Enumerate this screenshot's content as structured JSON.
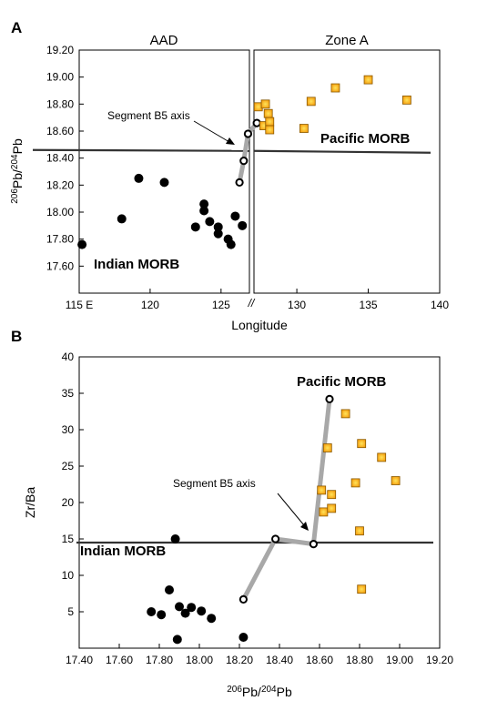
{
  "panel_a": {
    "label": "A",
    "zone_left": "AAD",
    "zone_right": "Zone A",
    "xlabel": "Longitude",
    "ylabel_base": "Pb",
    "ylabel_sup1": "206",
    "ylabel_sup2": "204",
    "ylabel_slash": "/",
    "x_first_tick": "115 E",
    "break_mark": "//",
    "label_pacific": "Pacific MORB",
    "label_indian": "Indian MORB",
    "label_segment": "Segment B5 axis"
  },
  "panel_b": {
    "label": "B",
    "xlabel_base": "Pb",
    "xlabel_sup1": "206",
    "xlabel_sup2": "204",
    "xlabel_slash": "/",
    "ylabel": "Zr/Ba",
    "label_pacific": "Pacific MORB",
    "label_indian": "Indian MORB",
    "label_segment": "Segment B5 axis"
  },
  "chart_data": [
    {
      "type": "scatter",
      "panel": "A",
      "xlabel": "Longitude",
      "ylabel": "206Pb/204Pb",
      "xlim": [
        115,
        140
      ],
      "ylim": [
        17.4,
        19.2
      ],
      "x_ticks": [
        115,
        120,
        125,
        130,
        135,
        140
      ],
      "x_tick_labels": [
        "115 E",
        "120",
        "125",
        "130",
        "135",
        "140"
      ],
      "y_ticks": [
        17.6,
        17.8,
        18.0,
        18.2,
        18.4,
        18.6,
        18.8,
        19.0,
        19.2
      ],
      "y_tick_labels": [
        "17.60",
        "17.80",
        "18.00",
        "18.20",
        "18.40",
        "18.60",
        "18.80",
        "19.00",
        "19.20"
      ],
      "axis_break_at": 127,
      "reference_line": 18.46,
      "series": [
        {
          "name": "Indian MORB",
          "marker": "filled-circle",
          "points": [
            [
              115.2,
              17.76
            ],
            [
              118,
              17.95
            ],
            [
              119.2,
              18.25
            ],
            [
              121,
              18.22
            ],
            [
              123.2,
              17.89
            ],
            [
              123.8,
              18.06
            ],
            [
              123.8,
              18.01
            ],
            [
              124.2,
              17.93
            ],
            [
              124.8,
              17.89
            ],
            [
              124.8,
              17.84
            ],
            [
              125.5,
              17.8
            ],
            [
              125.7,
              17.76
            ],
            [
              126,
              17.97
            ],
            [
              126.5,
              17.9
            ]
          ]
        },
        {
          "name": "Segment B5 axis",
          "marker": "open-circle",
          "connected": true,
          "points": [
            [
              126.3,
              18.22
            ],
            [
              126.6,
              18.38
            ],
            [
              126.9,
              18.58
            ],
            [
              127.2,
              18.66
            ]
          ]
        },
        {
          "name": "Pacific MORB",
          "marker": "orange-square",
          "points": [
            [
              127.3,
              18.78
            ],
            [
              127.7,
              18.64
            ],
            [
              127.8,
              18.8
            ],
            [
              128,
              18.73
            ],
            [
              128.1,
              18.67
            ],
            [
              128.1,
              18.61
            ],
            [
              130.5,
              18.62
            ],
            [
              131,
              18.82
            ],
            [
              132.7,
              18.92
            ],
            [
              135,
              18.98
            ],
            [
              137.7,
              18.83
            ]
          ]
        }
      ]
    },
    {
      "type": "scatter",
      "panel": "B",
      "xlabel": "206Pb/204Pb",
      "ylabel": "Zr/Ba",
      "xlim": [
        17.4,
        19.2
      ],
      "ylim": [
        0,
        40
      ],
      "x_ticks": [
        17.4,
        17.6,
        17.8,
        18.0,
        18.2,
        18.4,
        18.6,
        18.8,
        19.0,
        19.2
      ],
      "x_tick_labels": [
        "17.40",
        "17.60",
        "17.80",
        "18.00",
        "18.20",
        "18.40",
        "18.60",
        "18.80",
        "19.00",
        "19.20"
      ],
      "y_ticks": [
        5,
        10,
        15,
        20,
        25,
        30,
        35,
        40
      ],
      "y_tick_labels": [
        "5",
        "10",
        "15",
        "20",
        "25",
        "30",
        "35",
        "40"
      ],
      "reference_line": 14.5,
      "series": [
        {
          "name": "Indian MORB",
          "marker": "filled-circle",
          "points": [
            [
              17.76,
              5
            ],
            [
              17.81,
              4.6
            ],
            [
              17.85,
              8
            ],
            [
              17.88,
              15
            ],
            [
              17.89,
              1.2
            ],
            [
              17.9,
              5.7
            ],
            [
              17.93,
              4.8
            ],
            [
              17.96,
              5.6
            ],
            [
              18.01,
              5.1
            ],
            [
              18.06,
              4.1
            ],
            [
              18.22,
              1.5
            ]
          ]
        },
        {
          "name": "Segment B5 axis",
          "marker": "open-circle",
          "connected": true,
          "points": [
            [
              18.22,
              6.7
            ],
            [
              18.38,
              15
            ],
            [
              18.57,
              14.3
            ],
            [
              18.65,
              34.2
            ]
          ]
        },
        {
          "name": "Pacific MORB",
          "marker": "orange-square",
          "points": [
            [
              18.61,
              21.7
            ],
            [
              18.62,
              18.7
            ],
            [
              18.64,
              27.5
            ],
            [
              18.66,
              21.1
            ],
            [
              18.66,
              19.2
            ],
            [
              18.73,
              32.2
            ],
            [
              18.78,
              22.7
            ],
            [
              18.8,
              16.1
            ],
            [
              18.81,
              28.1
            ],
            [
              18.81,
              8.1
            ],
            [
              18.91,
              26.2
            ],
            [
              18.98,
              23
            ]
          ]
        }
      ]
    }
  ]
}
